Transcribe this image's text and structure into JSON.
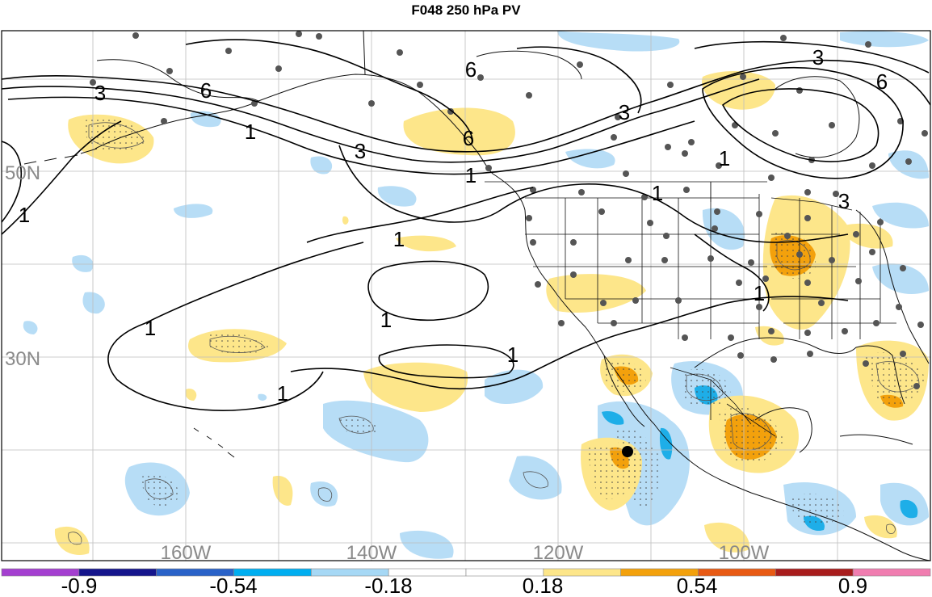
{
  "title": "F048 250 hPa PV",
  "longitude_labels": [
    "160W",
    "140W",
    "120W",
    "100W"
  ],
  "latitude_labels": [
    "50N",
    "30N"
  ],
  "contour_labels": [
    "3",
    "6",
    "1",
    "3",
    "6",
    "6",
    "3",
    "3",
    "6",
    "1",
    "1",
    "1",
    "1",
    "1",
    "1",
    "1",
    "3",
    "1",
    "1"
  ],
  "colorbar": {
    "tick_labels": [
      "-0.9",
      "-0.54",
      "-0.18",
      "0.18",
      "0.54",
      "0.9"
    ],
    "colors": [
      "#a43fd0",
      "#15158c",
      "#2a62c8",
      "#00aef0",
      "#a6d8f5",
      "#ffffff",
      "#ffffff",
      "#fde68a",
      "#f3a10c",
      "#e85a14",
      "#a81c1c",
      "#f07db0"
    ]
  },
  "colors": {
    "positive_light": "#fde68a",
    "positive_mid": "#f3a10c",
    "negative_light": "#b7ddf6",
    "negative_mid": "#1eaee8",
    "station_dot": "#555555",
    "contour": "#000000"
  }
}
